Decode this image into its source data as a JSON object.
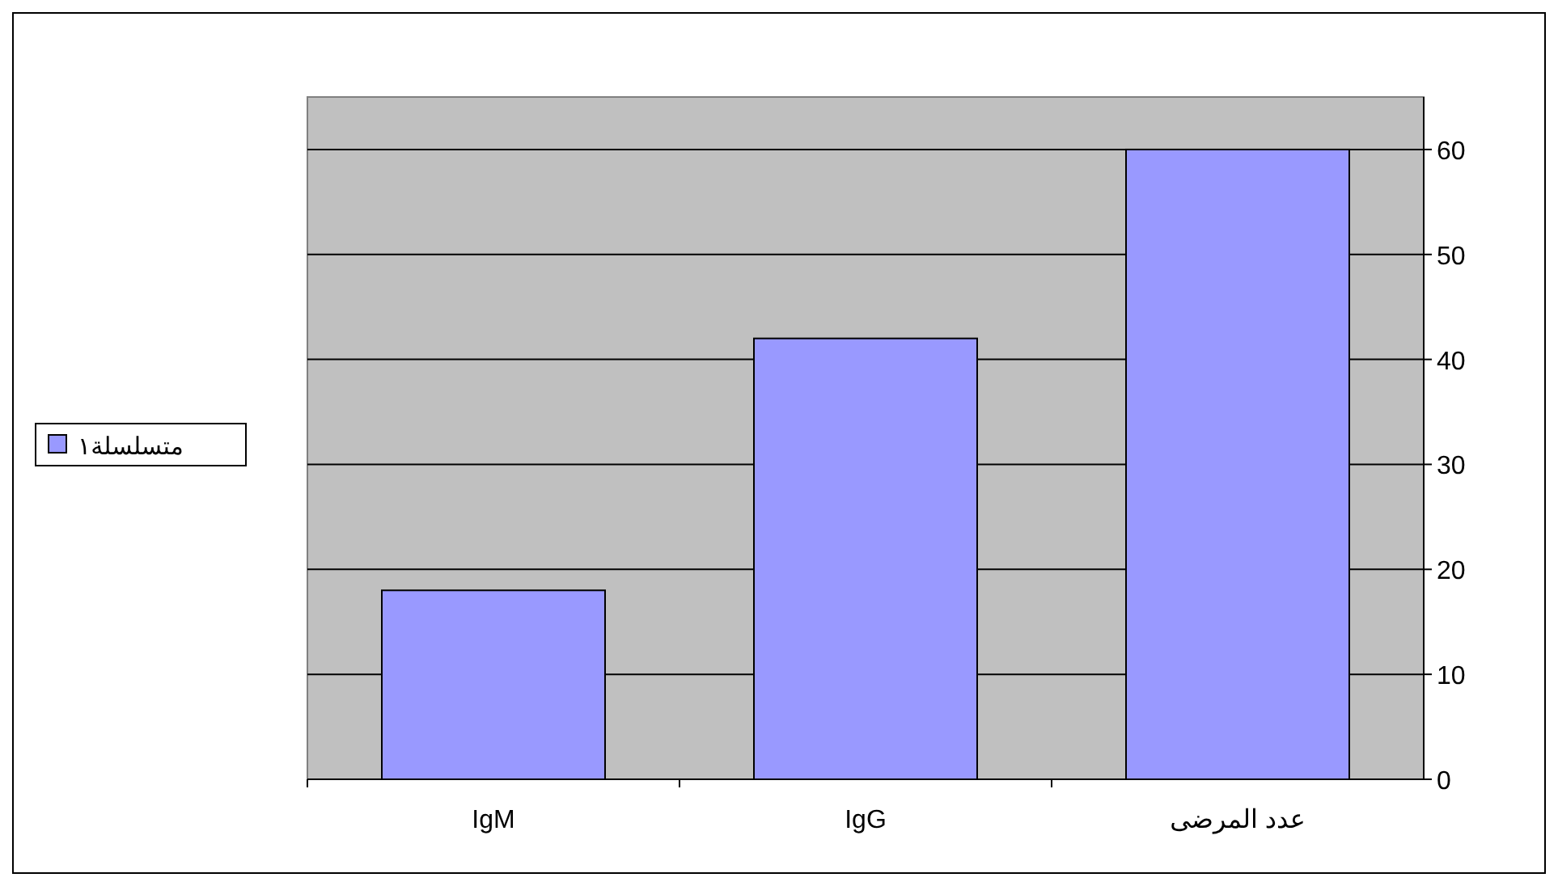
{
  "chart_data": {
    "type": "bar",
    "categories": [
      "IgM",
      "IgG",
      "عدد المرضى"
    ],
    "series": [
      {
        "name": "متسلسلة١",
        "color": "#9999ff",
        "values": [
          18,
          42,
          60
        ]
      }
    ],
    "ylim": [
      0,
      65
    ],
    "yticks": [
      0,
      10,
      20,
      30,
      40,
      50,
      60
    ],
    "grid": "y",
    "legend": "left"
  }
}
